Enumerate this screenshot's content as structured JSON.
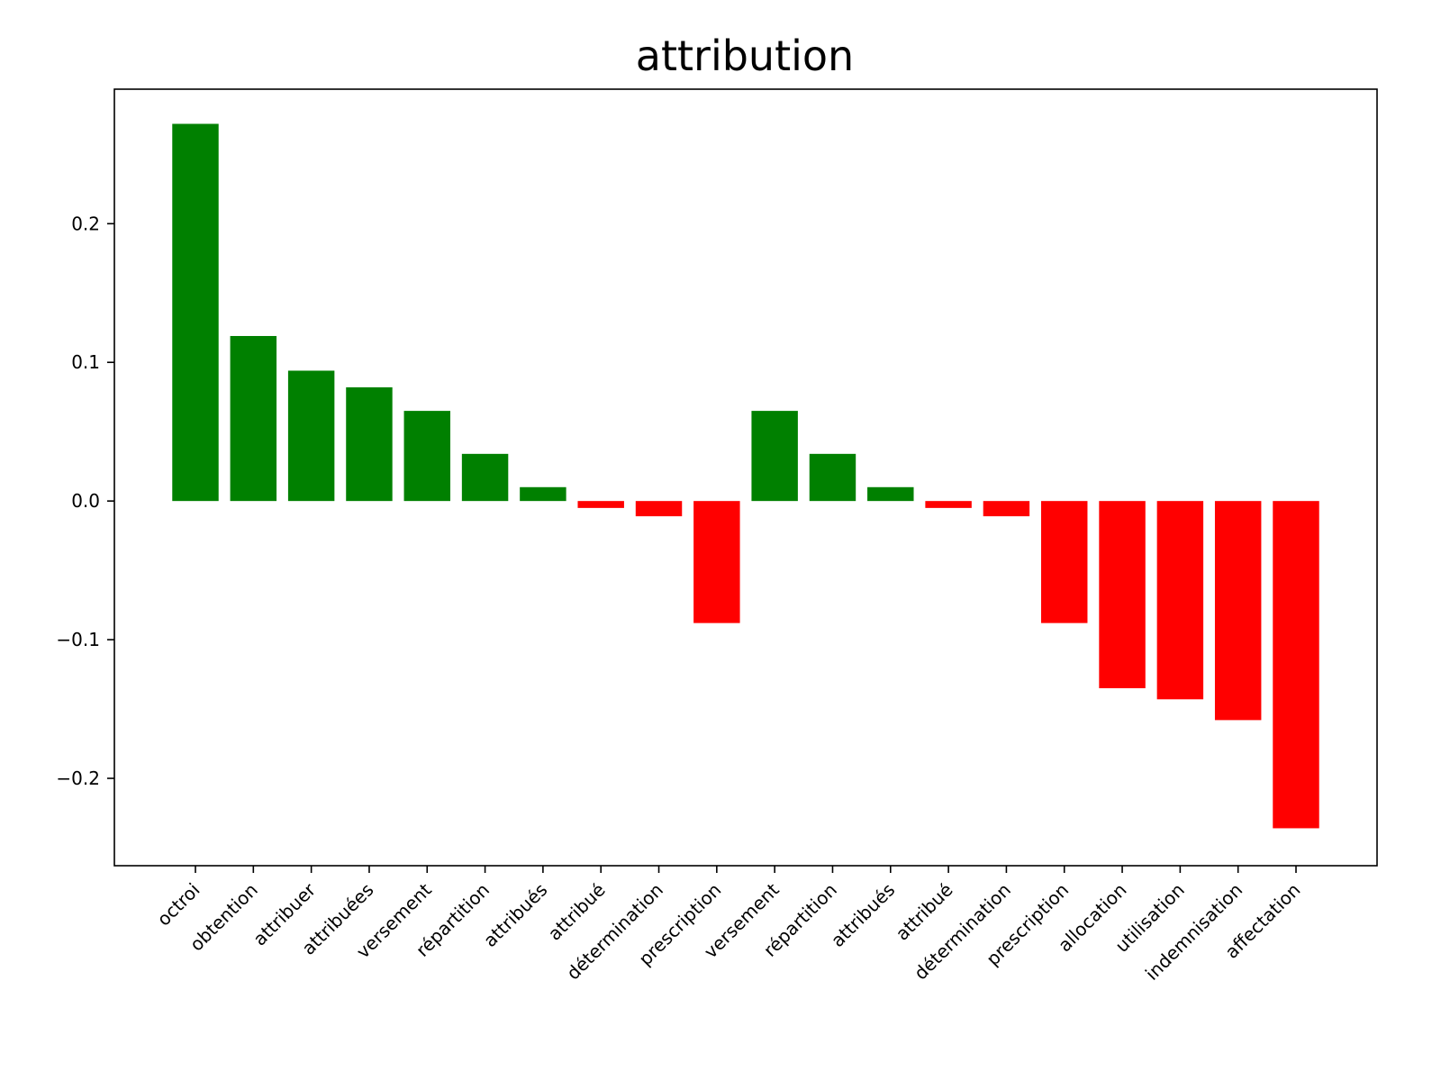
{
  "chart_data": {
    "type": "bar",
    "title": "attribution",
    "xlabel": "",
    "ylabel": "",
    "ylim": [
      -0.263,
      0.297
    ],
    "yticks": [
      0.2,
      0.1,
      0.0,
      -0.1,
      -0.2
    ],
    "ytick_labels": [
      "0.2",
      "0.1",
      "0.0",
      "−0.1",
      "−0.2"
    ],
    "grid": false,
    "legend": "none",
    "colors": {
      "positive": "#008000",
      "negative": "#ff0000"
    },
    "categories": [
      "octroi",
      "obtention",
      "attribuer",
      "attribuées",
      "versement",
      "répartition",
      "attribués",
      "attribué",
      "détermination",
      "prescription",
      "versement",
      "répartition",
      "attribués",
      "attribué",
      "détermination",
      "prescription",
      "allocation",
      "utilisation",
      "indemnisation",
      "affectation"
    ],
    "values": [
      0.272,
      0.119,
      0.094,
      0.082,
      0.065,
      0.034,
      0.01,
      -0.005,
      -0.011,
      -0.088,
      0.065,
      0.034,
      0.01,
      -0.005,
      -0.011,
      -0.088,
      -0.135,
      -0.143,
      -0.158,
      -0.236
    ]
  }
}
